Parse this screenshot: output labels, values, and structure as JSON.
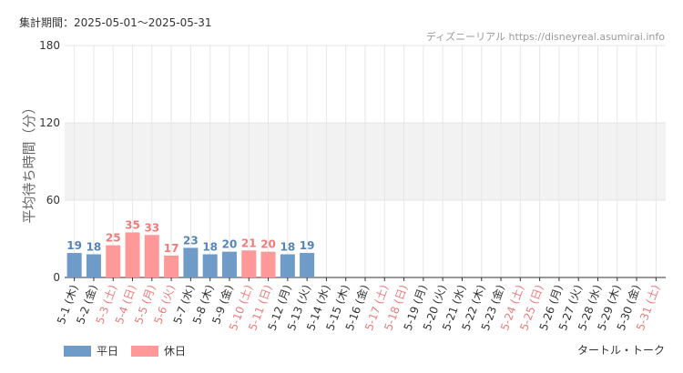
{
  "header": {
    "period_label": "集計期間：2025-05-01～2025-05-31",
    "credit": "ディズニーリアル https://disneyreal.asumirai.info"
  },
  "footer": {
    "attraction": "タートル・トーク"
  },
  "legend": [
    {
      "label": "平日",
      "color": "#6f9bc8"
    },
    {
      "label": "休日",
      "color": "#ff9999"
    }
  ],
  "colors": {
    "weekday": "#6f9bc8",
    "holiday": "#ff9999",
    "weekday_text": "#5585b5",
    "holiday_text": "#ef7b7b",
    "grid": "#e6e6e6",
    "band": "#f2f2f2"
  },
  "chart_data": {
    "type": "bar",
    "ylabel": "平均待ち時間（分）",
    "ylim": [
      0,
      180
    ],
    "yticks": [
      0,
      60,
      120,
      180
    ],
    "categories": [
      "5-1 (木)",
      "5-2 (金)",
      "5-3 (土)",
      "5-4 (日)",
      "5-5 (月)",
      "5-6 (火)",
      "5-7 (水)",
      "5-8 (木)",
      "5-9 (金)",
      "5-10 (土)",
      "5-11 (日)",
      "5-12 (月)",
      "5-13 (火)",
      "5-14 (水)",
      "5-15 (木)",
      "5-16 (金)",
      "5-17 (土)",
      "5-18 (日)",
      "5-19 (月)",
      "5-20 (火)",
      "5-21 (水)",
      "5-22 (木)",
      "5-23 (金)",
      "5-24 (土)",
      "5-25 (日)",
      "5-26 (月)",
      "5-27 (火)",
      "5-28 (水)",
      "5-29 (木)",
      "5-30 (金)",
      "5-31 (土)"
    ],
    "holiday": [
      false,
      false,
      true,
      true,
      true,
      true,
      false,
      false,
      false,
      true,
      true,
      false,
      false,
      false,
      false,
      false,
      true,
      true,
      false,
      false,
      false,
      false,
      false,
      true,
      true,
      false,
      false,
      false,
      false,
      false,
      true
    ],
    "values": [
      19,
      18,
      25,
      35,
      33,
      17,
      23,
      18,
      20,
      21,
      20,
      18,
      19,
      null,
      null,
      null,
      null,
      null,
      null,
      null,
      null,
      null,
      null,
      null,
      null,
      null,
      null,
      null,
      null,
      null,
      null
    ]
  }
}
